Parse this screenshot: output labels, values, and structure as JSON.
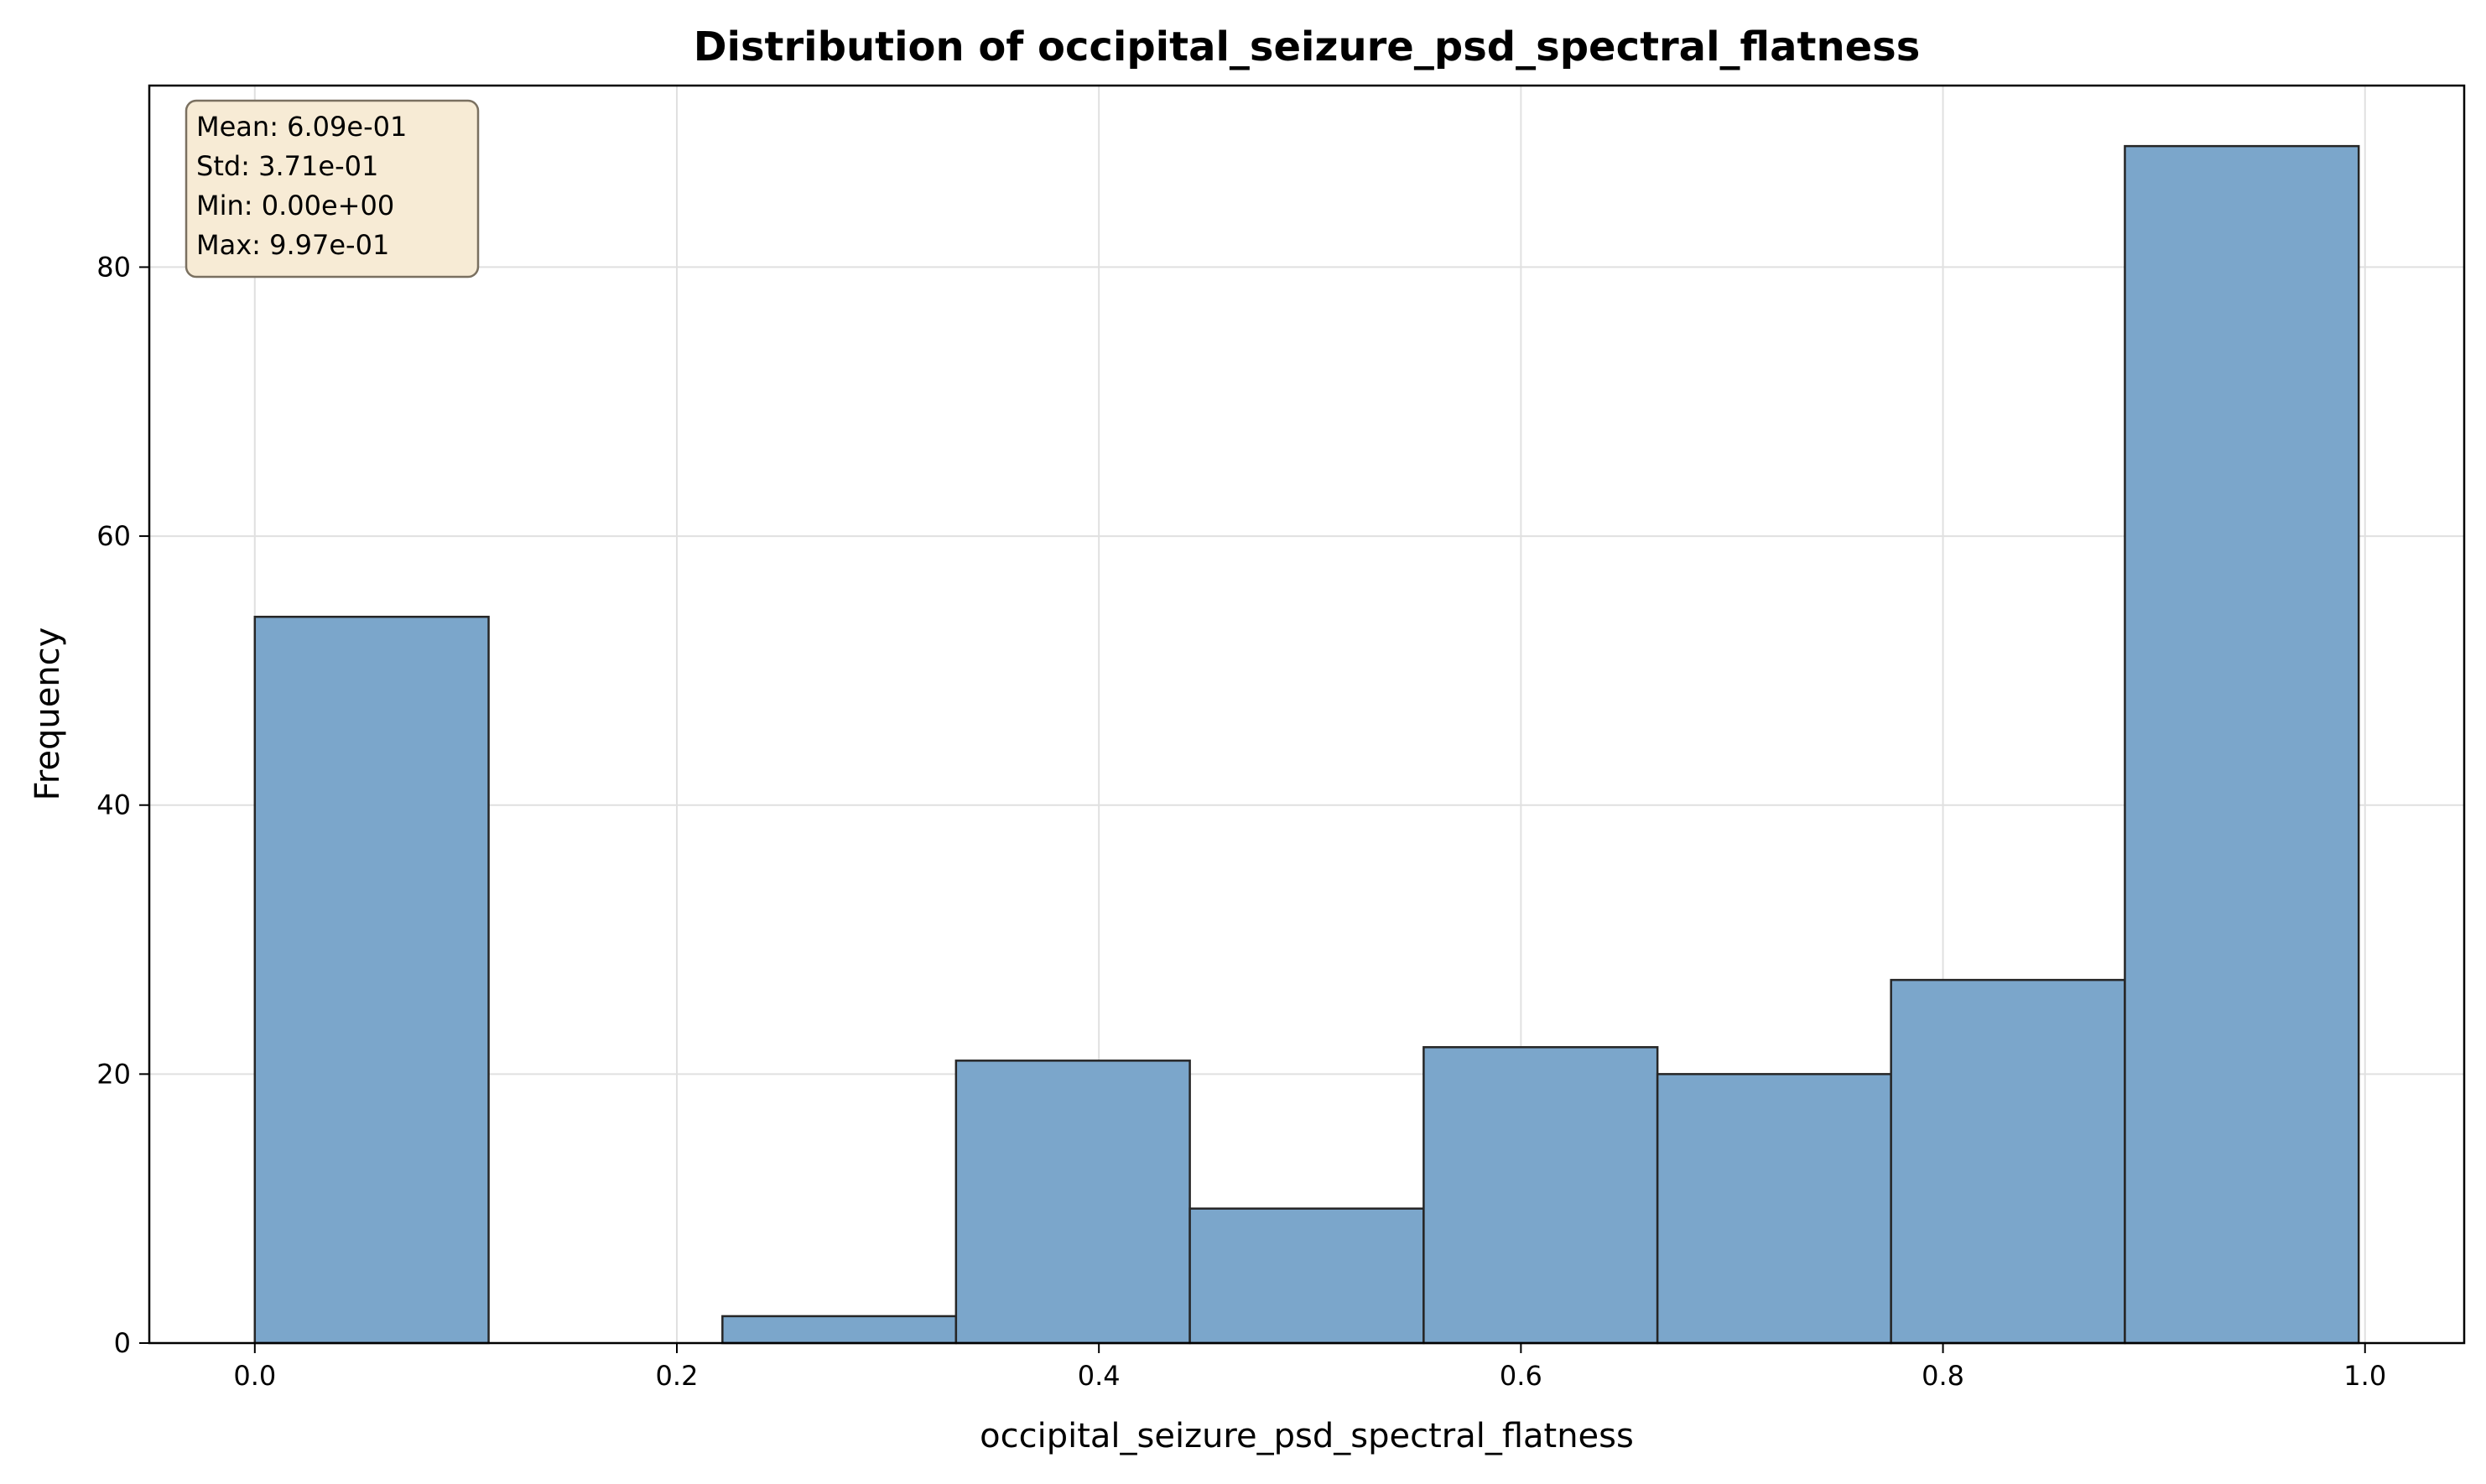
{
  "chart_data": {
    "type": "bar",
    "title": "Distribution of occipital_seizure_psd_spectral_flatness",
    "xlabel": "occipital_seizure_psd_spectral_flatness",
    "ylabel": "Frequency",
    "bins": [
      {
        "x0": 0.0,
        "x1": 0.1108,
        "count": 54
      },
      {
        "x0": 0.1108,
        "x1": 0.2216,
        "count": 0
      },
      {
        "x0": 0.2216,
        "x1": 0.3323,
        "count": 2
      },
      {
        "x0": 0.3323,
        "x1": 0.4431,
        "count": 21
      },
      {
        "x0": 0.4431,
        "x1": 0.5539,
        "count": 10
      },
      {
        "x0": 0.5539,
        "x1": 0.6647,
        "count": 22
      },
      {
        "x0": 0.6647,
        "x1": 0.7754,
        "count": 20
      },
      {
        "x0": 0.7754,
        "x1": 0.8862,
        "count": 27
      },
      {
        "x0": 0.8862,
        "x1": 0.997,
        "count": 89
      }
    ],
    "xlim": [
      -0.05,
      1.047
    ],
    "ylim": [
      0,
      93.5
    ],
    "xticks": [
      "0.0",
      "0.2",
      "0.4",
      "0.6",
      "0.8",
      "1.0"
    ],
    "xtick_values": [
      0.0,
      0.2,
      0.4,
      0.6,
      0.8,
      1.0
    ],
    "yticks": [
      "0",
      "20",
      "40",
      "60",
      "80"
    ],
    "ytick_values": [
      0,
      20,
      40,
      60,
      80
    ],
    "grid": true,
    "stats_box": {
      "position": "top-left",
      "lines": [
        "Mean: 6.09e-01",
        "Std: 3.71e-01",
        "Min: 0.00e+00",
        "Max: 9.97e-01"
      ]
    },
    "colors": {
      "bar_fill": "#7ba6cb",
      "bar_edge": "#262626",
      "grid": "#e0e0e0",
      "stats_fill": "#f7ebd5",
      "stats_edge": "#7a7060"
    }
  }
}
